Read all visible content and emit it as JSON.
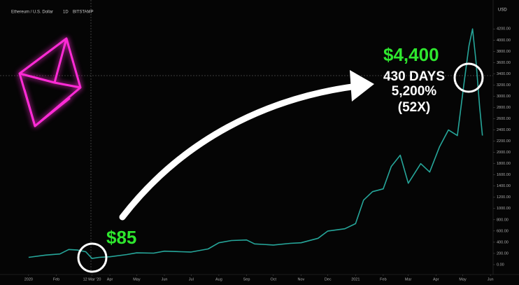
{
  "chart_data": {
    "type": "line",
    "title": "Ethereum / U.S. Dollar",
    "interval": "1D",
    "exchange": "BITSTAMP",
    "currency": "USD",
    "annotations": [
      "$85",
      "$4,400",
      "430 DAYS",
      "5,200%",
      "(52X)"
    ],
    "x": [
      "2020-01-01",
      "2020-01-20",
      "2020-02-05",
      "2020-02-15",
      "2020-02-25",
      "2020-03-05",
      "2020-03-12",
      "2020-03-20",
      "2020-04-01",
      "2020-04-20",
      "2020-05-01",
      "2020-05-20",
      "2020-06-01",
      "2020-06-20",
      "2020-07-01",
      "2020-07-20",
      "2020-08-01",
      "2020-08-15",
      "2020-09-01",
      "2020-09-10",
      "2020-10-01",
      "2020-10-20",
      "2020-11-01",
      "2020-11-20",
      "2020-12-01",
      "2020-12-20",
      "2021-01-01",
      "2021-01-10",
      "2021-01-20",
      "2021-02-01",
      "2021-02-10",
      "2021-02-20",
      "2021-03-01",
      "2021-03-15",
      "2021-03-25",
      "2021-04-05",
      "2021-04-15",
      "2021-04-25",
      "2021-05-03",
      "2021-05-08",
      "2021-05-12",
      "2021-05-16",
      "2021-05-20",
      "2021-05-23"
    ],
    "series": [
      {
        "name": "ETHUSD",
        "color": "#26a69a",
        "values": [
          130,
          170,
          190,
          270,
          260,
          230,
          110,
          130,
          140,
          180,
          210,
          205,
          240,
          230,
          225,
          280,
          390,
          430,
          440,
          370,
          350,
          380,
          390,
          470,
          600,
          640,
          730,
          1150,
          1300,
          1350,
          1750,
          1950,
          1450,
          1800,
          1650,
          2100,
          2400,
          2300,
          3300,
          3900,
          4200,
          3600,
          2800,
          2300
        ]
      }
    ],
    "xlim": [
      "2019-11-30",
      "2021-06-04"
    ],
    "xticks": [
      {
        "value": "2020-01-01",
        "label": "2020"
      },
      {
        "value": "2020-02-01",
        "label": "Feb"
      },
      {
        "value": "2020-03-12",
        "label": "12 Mar '20"
      },
      {
        "value": "2020-04-01",
        "label": "Apr"
      },
      {
        "value": "2020-05-01",
        "label": "May"
      },
      {
        "value": "2020-06-01",
        "label": "Jun"
      },
      {
        "value": "2020-07-01",
        "label": "Jul"
      },
      {
        "value": "2020-08-01",
        "label": "Aug"
      },
      {
        "value": "2020-09-01",
        "label": "Sep"
      },
      {
        "value": "2020-10-01",
        "label": "Oct"
      },
      {
        "value": "2020-11-01",
        "label": "Nov"
      },
      {
        "value": "2020-12-01",
        "label": "Dec"
      },
      {
        "value": "2021-01-01",
        "label": "2021"
      },
      {
        "value": "2021-02-01",
        "label": "Feb"
      },
      {
        "value": "2021-03-01",
        "label": "Mar"
      },
      {
        "value": "2021-04-01",
        "label": "Apr"
      },
      {
        "value": "2021-05-01",
        "label": "May"
      },
      {
        "value": "2021-06-01",
        "label": "Jun"
      }
    ],
    "ylim": [
      -250,
      4590
    ],
    "yticks": [
      {
        "value": 0,
        "label": "0.00"
      },
      {
        "value": 200,
        "label": "200.00"
      },
      {
        "value": 400,
        "label": "400.00"
      },
      {
        "value": 600,
        "label": "600.00"
      },
      {
        "value": 800,
        "label": "800.00"
      },
      {
        "value": 1000,
        "label": "1000.00"
      },
      {
        "value": 1200,
        "label": "1200.00"
      },
      {
        "value": 1400,
        "label": "1400.00"
      },
      {
        "value": 1600,
        "label": "1600.00"
      },
      {
        "value": 1800,
        "label": "1800.00"
      },
      {
        "value": 2000,
        "label": "2000.00"
      },
      {
        "value": 2200,
        "label": "2200.00"
      },
      {
        "value": 2400,
        "label": "2400.00"
      },
      {
        "value": 2600,
        "label": "2600.00"
      },
      {
        "value": 2800,
        "label": "2800.00"
      },
      {
        "value": 3000,
        "label": "3000.00"
      },
      {
        "value": 3200,
        "label": "3200.00"
      },
      {
        "value": 3400,
        "label": "3400.00"
      },
      {
        "value": 3600,
        "label": "3600.00"
      },
      {
        "value": 3800,
        "label": "3800.00"
      },
      {
        "value": 4000,
        "label": "4000.00"
      },
      {
        "value": 4200,
        "label": "4200.00"
      }
    ],
    "grid": false
  }
}
